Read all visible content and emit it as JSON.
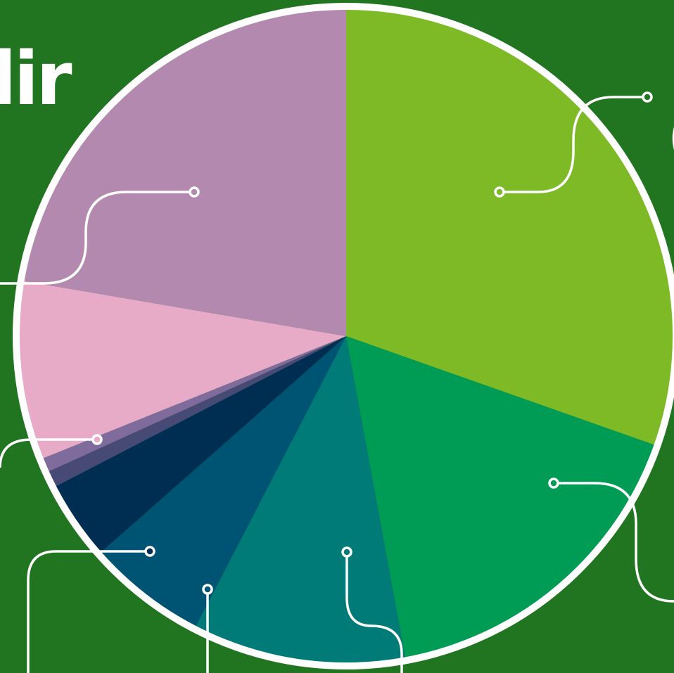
{
  "background_color": "#217520",
  "ring_color": "#ffffff",
  "title_fragment": "lir",
  "right_fragment": "(",
  "chart_data": {
    "type": "pie",
    "start": "top",
    "direction": "clockwise",
    "legend": "none",
    "labels_visible": false,
    "slices": [
      {
        "percent": 30.4,
        "color": "#7dba26"
      },
      {
        "percent": 16.7,
        "color": "#009c56"
      },
      {
        "percent": 10.5,
        "color": "#007b77"
      },
      {
        "percent": 5.9,
        "color": "#005473"
      },
      {
        "percent": 3.9,
        "color": "#002e52"
      },
      {
        "percent": 0.8,
        "color": "#464a75"
      },
      {
        "percent": 0.7,
        "color": "#7f6b9c"
      },
      {
        "percent": 8.8,
        "color": "#e8abc7"
      },
      {
        "percent": 22.3,
        "color": "#b489af"
      }
    ]
  }
}
